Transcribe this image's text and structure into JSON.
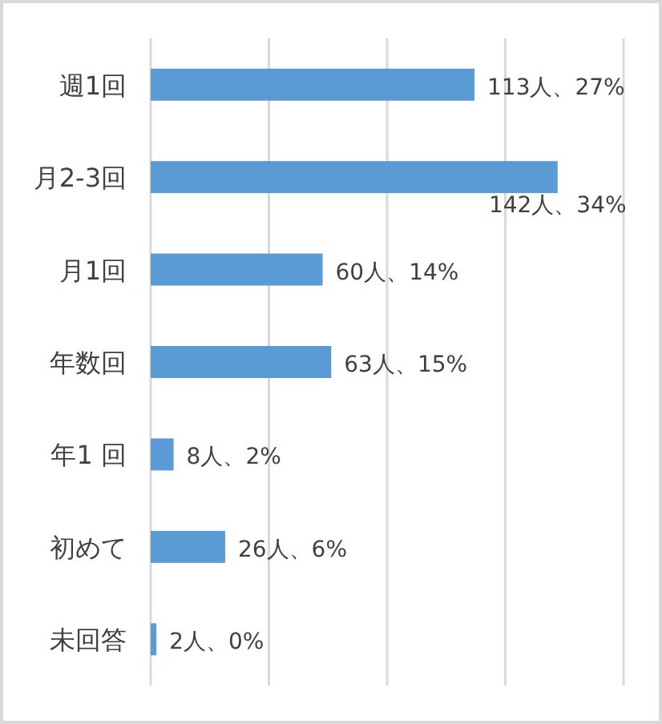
{
  "chart_data": {
    "type": "bar",
    "orientation": "horizontal",
    "categories": [
      "週1回",
      "月2-3回",
      "月1回",
      "年数回",
      "年1 回",
      "初めて",
      "未回答"
    ],
    "values": [
      113,
      142,
      60,
      63,
      8,
      26,
      2
    ],
    "value_labels": [
      "113人、27%",
      "142人、34%",
      "60人、14%",
      "63人、15%",
      "8人、2%",
      "26人、6%",
      "2人、0%"
    ],
    "color": "#5b9bd5",
    "xlim": [
      0,
      165
    ],
    "xticks": [
      {
        "value": 0,
        "label": null
      },
      {
        "value": 41.25,
        "label": null
      },
      {
        "value": 82.5,
        "label": null
      },
      {
        "value": 123.75,
        "label": null
      },
      {
        "value": 165,
        "label": null
      }
    ],
    "grid": "x",
    "tick_labels": "y"
  }
}
